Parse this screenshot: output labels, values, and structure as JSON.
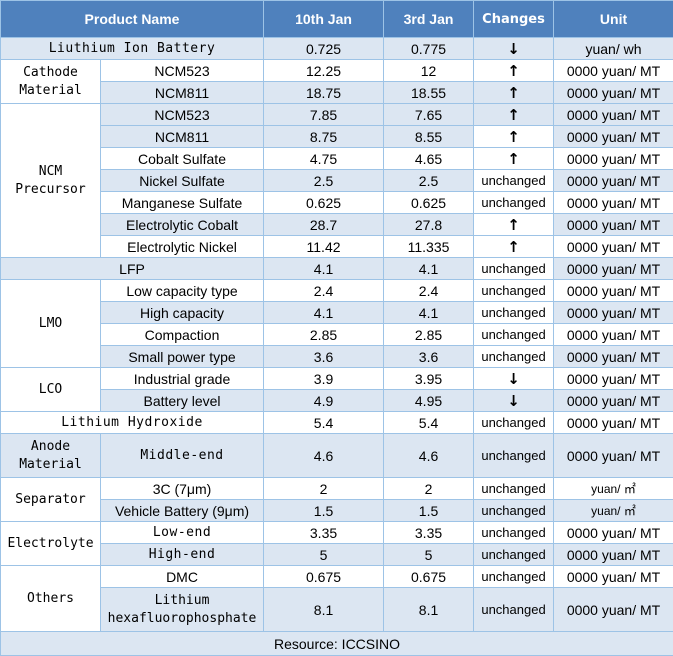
{
  "headers": {
    "product": "Product Name",
    "col1": "10th Jan",
    "col2": "3rd Jan",
    "changes": "Changes",
    "unit": "Unit"
  },
  "rows": [
    {
      "cat": "Liuthium Ion Battery",
      "v1": "0.725",
      "v2": "0.775",
      "chg": "↓",
      "unit": "yuan/ wh"
    },
    {
      "cat": "Cathode Material",
      "name": "NCM523",
      "v1": "12.25",
      "v2": "12",
      "chg": "↑",
      "unit": "0000 yuan/ MT"
    },
    {
      "name": "NCM811",
      "v1": "18.75",
      "v2": "18.55",
      "chg": "↑",
      "unit": "0000 yuan/ MT"
    },
    {
      "cat": "NCM Precursor",
      "name": "NCM523",
      "v1": "7.85",
      "v2": "7.65",
      "chg": "↑",
      "unit": "0000 yuan/ MT"
    },
    {
      "name": "NCM811",
      "v1": "8.75",
      "v2": "8.55",
      "chg": "↑",
      "unit": "0000 yuan/ MT"
    },
    {
      "name": "Cobalt Sulfate",
      "v1": "4.75",
      "v2": "4.65",
      "chg": "↑",
      "unit": "0000 yuan/ MT"
    },
    {
      "name": "Nickel Sulfate",
      "v1": "2.5",
      "v2": "2.5",
      "chg": "unchanged",
      "unit": "0000 yuan/ MT"
    },
    {
      "name": "Manganese Sulfate",
      "v1": "0.625",
      "v2": "0.625",
      "chg": "unchanged",
      "unit": "0000 yuan/ MT"
    },
    {
      "name": "Electrolytic Cobalt",
      "v1": "28.7",
      "v2": "27.8",
      "chg": "↑",
      "unit": "0000 yuan/ MT"
    },
    {
      "name": "Electrolytic Nickel",
      "v1": "11.42",
      "v2": "11.335",
      "chg": "↑",
      "unit": "0000 yuan/ MT"
    },
    {
      "cat": "LFP",
      "v1": "4.1",
      "v2": "4.1",
      "chg": "unchanged",
      "unit": "0000 yuan/ MT"
    },
    {
      "cat": "LMO",
      "name": "Low capacity type",
      "v1": "2.4",
      "v2": "2.4",
      "chg": "unchanged",
      "unit": "0000 yuan/ MT"
    },
    {
      "name": "High capacity",
      "v1": "4.1",
      "v2": "4.1",
      "chg": "unchanged",
      "unit": "0000 yuan/ MT"
    },
    {
      "name": "Compaction",
      "v1": "2.85",
      "v2": "2.85",
      "chg": "unchanged",
      "unit": "0000 yuan/ MT"
    },
    {
      "name": "Small power type",
      "v1": "3.6",
      "v2": "3.6",
      "chg": "unchanged",
      "unit": "0000 yuan/ MT"
    },
    {
      "cat": "LCO",
      "name": "Industrial grade",
      "v1": "3.9",
      "v2": "3.95",
      "chg": "↓",
      "unit": "0000 yuan/ MT"
    },
    {
      "name": "Battery level",
      "v1": "4.9",
      "v2": "4.95",
      "chg": "↓",
      "unit": "0000 yuan/ MT"
    },
    {
      "cat": "Lithium Hydroxide",
      "v1": "5.4",
      "v2": "5.4",
      "chg": "unchanged",
      "unit": "0000 yuan/ MT"
    },
    {
      "cat": "Anode Material",
      "name": "Middle-end",
      "v1": "4.6",
      "v2": "4.6",
      "chg": "unchanged",
      "unit": "0000 yuan/ MT"
    },
    {
      "cat": "Separator",
      "name": "3C (7μm)",
      "v1": "2",
      "v2": "2",
      "chg": "unchanged",
      "unit": "yuan/ ㎡"
    },
    {
      "name": "Vehicle Battery (9μm)",
      "v1": "1.5",
      "v2": "1.5",
      "chg": "unchanged",
      "unit": "yuan/ ㎡"
    },
    {
      "cat": "Electrolyte",
      "name": "Low-end",
      "v1": "3.35",
      "v2": "3.35",
      "chg": "unchanged",
      "unit": "0000 yuan/ MT"
    },
    {
      "name": "High-end",
      "v1": "5",
      "v2": "5",
      "chg": "unchanged",
      "unit": "0000 yuan/ MT"
    },
    {
      "cat": "Others",
      "name": "DMC",
      "v1": "0.675",
      "v2": "0.675",
      "chg": "unchanged",
      "unit": "0000 yuan/ MT"
    },
    {
      "name": "Lithium hexafluorophosphate",
      "v1": "8.1",
      "v2": "8.1",
      "chg": "unchanged",
      "unit": "0000 yuan/ MT"
    }
  ],
  "source": "Resource: ICCSINO"
}
